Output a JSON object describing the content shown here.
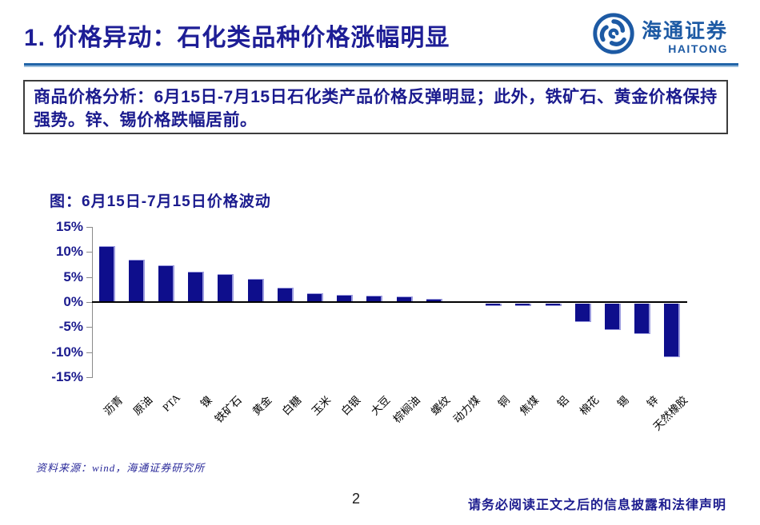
{
  "header": {
    "title": "1. 价格异动：石化类品种价格涨幅明显",
    "logo": {
      "cn": "海通证券",
      "en": "HAITONG"
    }
  },
  "summary": {
    "text": "商品价格分析：6月15日-7月15日石化类产品价格反弹明显；此外，铁矿石、黄金价格保持强势。锌、锡价格跌幅居前。"
  },
  "chart_data": {
    "type": "bar",
    "title": "图：6月15日-7月15日价格波动",
    "categories": [
      "沥青",
      "原油",
      "PTA",
      "镍",
      "铁矿石",
      "黄金",
      "白糖",
      "玉米",
      "白银",
      "大豆",
      "棕榈油",
      "螺纹",
      "动力煤",
      "铜",
      "焦煤",
      "铝",
      "棉花",
      "锡",
      "锌",
      "天然橡胶"
    ],
    "values": [
      11.2,
      8.4,
      7.4,
      6.0,
      5.6,
      4.6,
      2.9,
      1.8,
      1.5,
      1.3,
      1.1,
      0.6,
      0.2,
      -0.4,
      -0.4,
      -0.5,
      -3.7,
      -5.2,
      -6.0,
      -10.7
    ],
    "xlabel": "",
    "ylabel": "",
    "ylim": [
      -15,
      15
    ],
    "yticks": [
      15,
      10,
      5,
      0,
      -5,
      -10,
      -15
    ],
    "ytick_suffix": "%",
    "grid": false,
    "legend": "none",
    "bar_color": "#0e0e8c",
    "bar_edge_color": "#9a9ade"
  },
  "footer": {
    "source": "资料来源：wind，海通证券研究所",
    "page": "2",
    "disclaimer": "请务必阅读正文之后的信息披露和法律声明"
  }
}
